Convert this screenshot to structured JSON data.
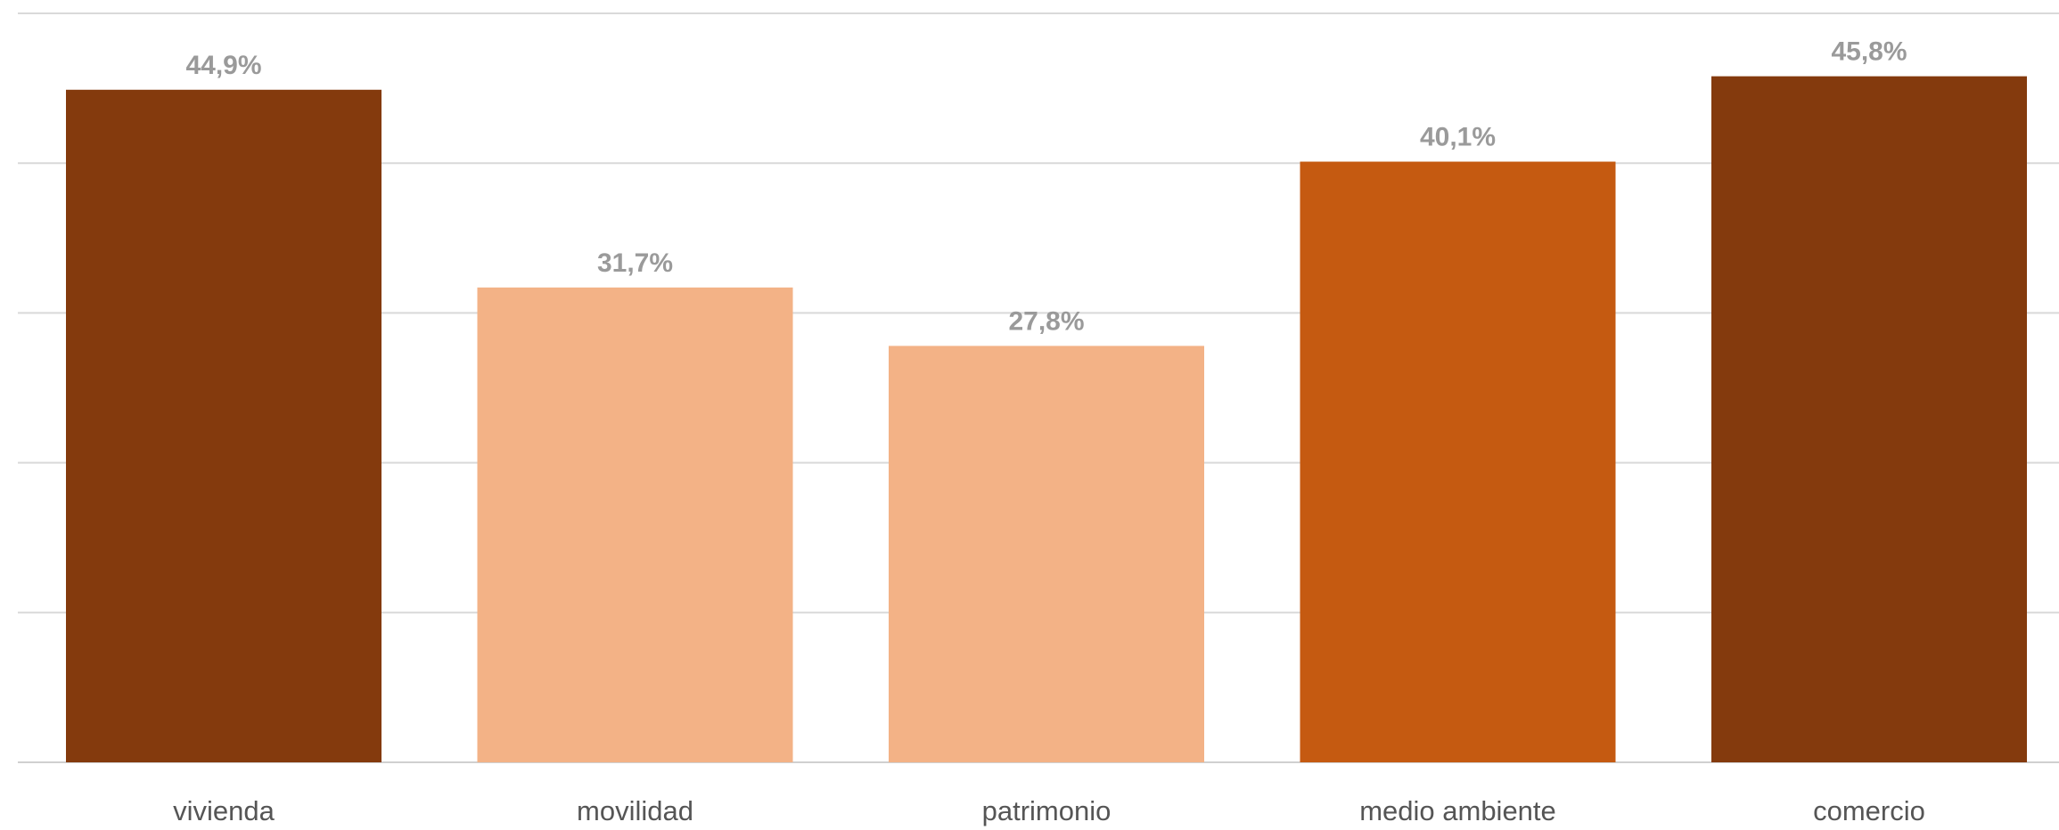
{
  "chart_data": {
    "type": "bar",
    "categories": [
      "vivienda",
      "movilidad",
      "patrimonio",
      "medio ambiente",
      "comercio"
    ],
    "values": [
      44.9,
      31.7,
      27.8,
      40.1,
      45.8
    ],
    "value_labels": [
      "44,9%",
      "31,7%",
      "27,8%",
      "40,1%",
      "45,8%"
    ],
    "colors": [
      "#843A0D",
      "#F3B286",
      "#F3B286",
      "#C55A11",
      "#843A0D"
    ],
    "title": "",
    "xlabel": "",
    "ylabel": "",
    "ylim": [
      0,
      50
    ],
    "grid": true,
    "legend": "none"
  }
}
